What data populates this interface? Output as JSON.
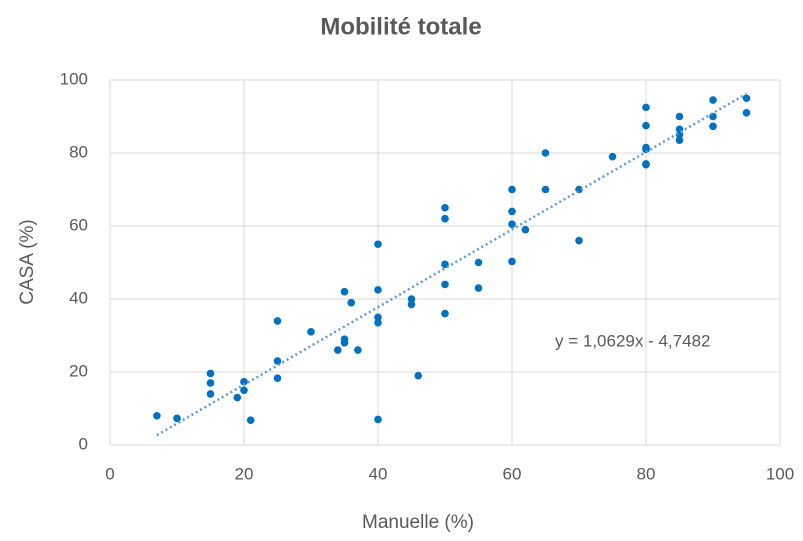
{
  "chart_data": {
    "type": "scatter",
    "title": "Mobilité totale",
    "x_label": "Manuelle (%)",
    "y_label": "CASA (%)",
    "series": [
      {
        "name": "CASA",
        "color": "#0070c0",
        "x": [
          7,
          10,
          15,
          15,
          15,
          19,
          20,
          20,
          21,
          25,
          25,
          25,
          30,
          34,
          35,
          35,
          35,
          36,
          37,
          40,
          40,
          40,
          40,
          40,
          45,
          45,
          46,
          50,
          50,
          50,
          50,
          50,
          55,
          55,
          60,
          60,
          60,
          60,
          62,
          65,
          65,
          70,
          70,
          75,
          80,
          80,
          80,
          80,
          80,
          80,
          85,
          85,
          85,
          85,
          90,
          90,
          90,
          95,
          95
        ],
        "values": [
          8,
          7.3,
          19.6,
          17,
          14,
          13,
          17.3,
          15,
          6.8,
          34,
          23,
          18.3,
          31,
          26,
          42,
          29,
          28,
          39,
          26,
          55,
          42.5,
          35,
          33.5,
          7,
          40,
          38.5,
          19,
          65,
          62,
          49.5,
          44,
          36,
          50,
          43,
          70,
          64,
          60.5,
          50.3,
          59,
          80,
          70,
          70,
          56,
          79,
          92.5,
          87.5,
          81.5,
          81,
          77,
          76.8,
          90,
          86.5,
          85,
          83.5,
          94.5,
          90,
          87.3,
          95,
          91
        ]
      }
    ],
    "trendline": {
      "label": "y = 1,0629x - 4,7482",
      "slope": 1.0629,
      "intercept": -4.7482,
      "color": "#5b9bd5"
    },
    "xlim": [
      0,
      100
    ],
    "xticks": [
      0,
      20,
      40,
      60,
      80,
      100
    ],
    "ylim": [
      0,
      100
    ],
    "yticks": [
      0,
      20,
      40,
      60,
      80,
      100
    ],
    "grid": true
  }
}
